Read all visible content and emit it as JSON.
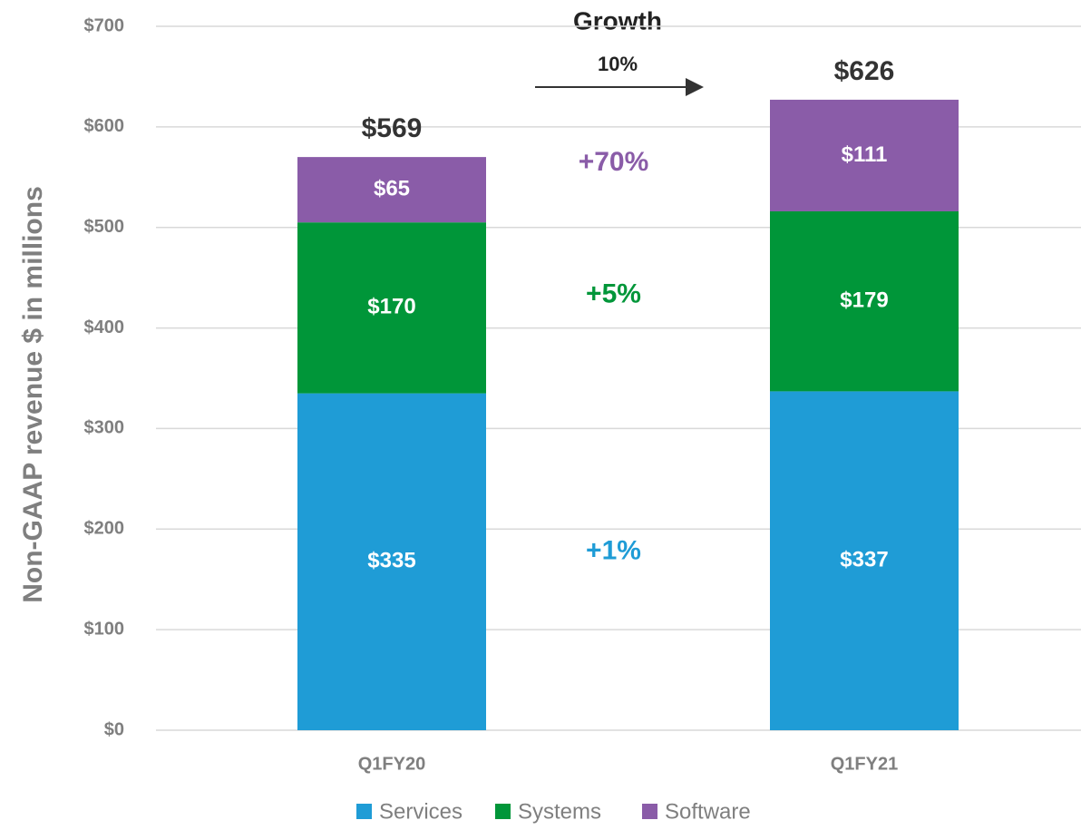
{
  "chart_data": {
    "type": "stacked_bar",
    "y_axis_label": "Non-GAAP revenue $ in millions",
    "categories": [
      "Q1FY20",
      "Q1FY21"
    ],
    "series": [
      {
        "name": "Services",
        "color": "#1f9cd6",
        "values": [
          335,
          337
        ],
        "value_labels": [
          "$335",
          "$337"
        ],
        "growth": "+1%"
      },
      {
        "name": "Systems",
        "color": "#009639",
        "values": [
          170,
          179
        ],
        "value_labels": [
          "$170",
          "$179"
        ],
        "growth": "+5%"
      },
      {
        "name": "Software",
        "color": "#8a5ca8",
        "values": [
          65,
          111
        ],
        "value_labels": [
          "$65",
          "$111"
        ],
        "growth": "+70%"
      }
    ],
    "totals": [
      569,
      626
    ],
    "total_labels": [
      "$569",
      "$626"
    ],
    "annotation": {
      "title": "Growth",
      "text": "10%"
    },
    "ylim": [
      0,
      700
    ],
    "yticks": [
      {
        "value": 0,
        "label": "$0"
      },
      {
        "value": 100,
        "label": "$100"
      },
      {
        "value": 200,
        "label": "$200"
      },
      {
        "value": 300,
        "label": "$300"
      },
      {
        "value": 400,
        "label": "$400"
      },
      {
        "value": 500,
        "label": "$500"
      },
      {
        "value": 600,
        "label": "$600"
      },
      {
        "value": 700,
        "label": "$700"
      }
    ],
    "grid": true,
    "legend": "bottom"
  }
}
